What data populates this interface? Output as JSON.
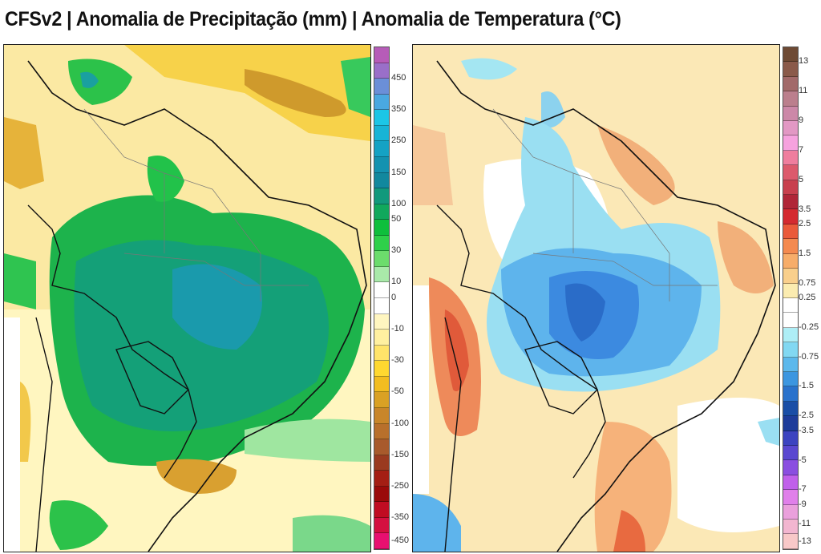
{
  "title": "CFSv2 | Anomalia de Precipitação (mm) | Anomalia de Temperatura (°C)",
  "maps": [
    {
      "name": "precipitation-anomaly-map",
      "variable": "Anomalia de Precipitação",
      "unit": "mm",
      "region": "América do Sul / Brasil"
    },
    {
      "name": "temperature-anomaly-map",
      "variable": "Anomalia de Temperatura",
      "unit": "°C",
      "region": "América do Sul / Brasil"
    }
  ],
  "precip_colorbar": {
    "colors": [
      "#b65cb8",
      "#9a6fc9",
      "#6b8fd8",
      "#4aa8e0",
      "#1cc6e6",
      "#18b4d6",
      "#15a2c4",
      "#1492b0",
      "#12889e",
      "#12997c",
      "#11a85c",
      "#0fbf3c",
      "#2fd04a",
      "#6cdc6c",
      "#a9e9a9",
      "#ffffff",
      "#ffffff",
      "#fff6c0",
      "#fff0a0",
      "#ffe46a",
      "#ffd830",
      "#f2bd20",
      "#d9a124",
      "#c8862a",
      "#b8702c",
      "#a85a2c",
      "#9a3a20",
      "#a41e14",
      "#9a0a0a",
      "#c00c22",
      "#d41040",
      "#e81070"
    ],
    "ticks": [
      "450",
      "350",
      "250",
      "150",
      "100",
      "50",
      "30",
      "10",
      "0",
      "-10",
      "-30",
      "-50",
      "-100",
      "-150",
      "-250",
      "-350",
      "-450"
    ]
  },
  "temp_colorbar": {
    "colors": [
      "#6e4a34",
      "#8a5a4a",
      "#a26a6a",
      "#bb7f8d",
      "#cc88a8",
      "#e298c4",
      "#f6a2de",
      "#ef7e9e",
      "#dc5a6c",
      "#c8404e",
      "#b02638",
      "#d42a30",
      "#ea5a3a",
      "#f48a50",
      "#f7ad6a",
      "#f9cf8c",
      "#fbecb0",
      "#ffffff",
      "#ffffff",
      "#aeeef6",
      "#82d8f2",
      "#5cb8ec",
      "#3c96e0",
      "#2a72cc",
      "#1a4ea6",
      "#1e3c9a",
      "#3c44c0",
      "#5a48d0",
      "#8a4ee0",
      "#c060ea",
      "#e080ea",
      "#eaa0dc",
      "#f2b6d0",
      "#f8c8c8"
    ],
    "ticks": [
      "13",
      "11",
      "9",
      "7",
      "5",
      "3.5",
      "2.5",
      "1.5",
      "0.75",
      "0.25",
      "-0.25",
      "-0.75",
      "-1.5",
      "-2.5",
      "-3.5",
      "-5",
      "-7",
      "-9",
      "-11",
      "-13"
    ]
  }
}
